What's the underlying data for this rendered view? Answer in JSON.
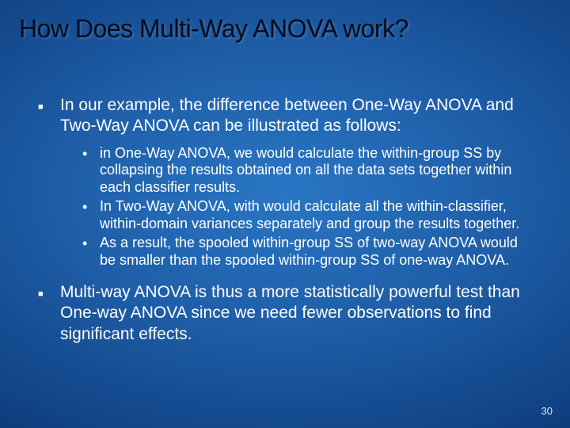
{
  "slide": {
    "title": "How Does Multi-Way ANOVA work?",
    "title_fontsize": 32,
    "title_color": "#040c1c",
    "body_color": "#ffffff",
    "body_font": "Verdana",
    "background_gradient": [
      "#2976c4",
      "#1f5ea8",
      "#144a8e",
      "#0b3673",
      "#062651"
    ],
    "l1_fontsize": 21,
    "l2_fontsize": 18,
    "bullets": [
      {
        "text": "In our example, the difference between One-Way ANOVA and Two-Way ANOVA can be illustrated as follows:",
        "sub": [
          " in One-Way ANOVA, we would calculate the within-group SS by collapsing the results obtained on all the data sets together within each classifier results.",
          "In Two-Way ANOVA, with would calculate all the within-classifier, within-domain variances separately and group the results together.",
          "As a result, the spooled within-group SS of two-way ANOVA would be smaller than the spooled within-group SS of one-way ANOVA."
        ]
      },
      {
        "text": "Multi-way ANOVA is thus a more statistically powerful test than One-way ANOVA since we need fewer observations to find significant effects.",
        "sub": []
      }
    ],
    "page_number": "30",
    "page_number_fontsize": 13
  }
}
